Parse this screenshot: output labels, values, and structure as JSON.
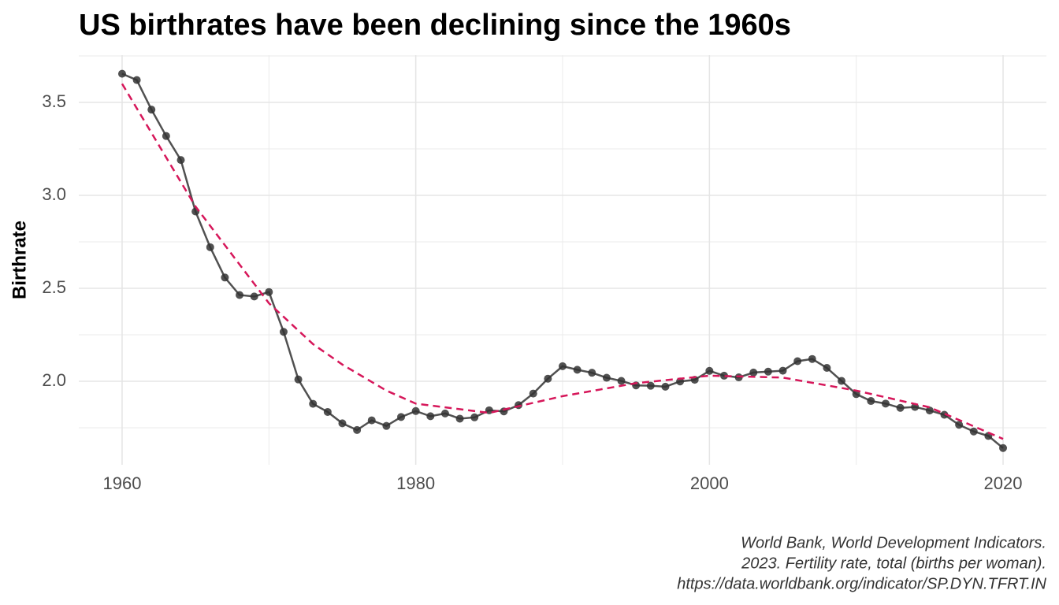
{
  "chart_data": {
    "type": "line",
    "title": "US birthrates have been declining since the 1960s",
    "y_label": "Birthrate",
    "caption": [
      "World Bank, World Development Indicators.",
      "2023. Fertility rate, total (births per woman).",
      "https://data.worldbank.org/indicator/SP.DYN.TFRT.IN"
    ],
    "x": [
      1960,
      1961,
      1962,
      1963,
      1964,
      1965,
      1966,
      1967,
      1968,
      1969,
      1970,
      1971,
      1972,
      1973,
      1974,
      1975,
      1976,
      1977,
      1978,
      1979,
      1980,
      1981,
      1982,
      1983,
      1984,
      1985,
      1986,
      1987,
      1988,
      1989,
      1990,
      1991,
      1992,
      1993,
      1994,
      1995,
      1996,
      1997,
      1998,
      1999,
      2000,
      2001,
      2002,
      2003,
      2004,
      2005,
      2006,
      2007,
      2008,
      2009,
      2010,
      2011,
      2012,
      2013,
      2014,
      2015,
      2016,
      2017,
      2018,
      2019,
      2020
    ],
    "series": [
      {
        "color": "#333333",
        "markers": true,
        "dashed": false,
        "values": [
          3.654,
          3.62,
          3.461,
          3.319,
          3.19,
          2.913,
          2.721,
          2.558,
          2.464,
          2.456,
          2.48,
          2.266,
          2.01,
          1.879,
          1.835,
          1.774,
          1.738,
          1.79,
          1.76,
          1.808,
          1.84,
          1.812,
          1.827,
          1.799,
          1.806,
          1.844,
          1.838,
          1.872,
          1.934,
          2.014,
          2.081,
          2.062,
          2.046,
          2.019,
          2.002,
          1.978,
          1.976,
          1.971,
          1.999,
          2.008,
          2.056,
          2.03,
          2.021,
          2.047,
          2.052,
          2.057,
          2.108,
          2.12,
          2.072,
          2.002,
          1.931,
          1.894,
          1.88,
          1.857,
          1.862,
          1.843,
          1.82,
          1.766,
          1.73,
          1.706,
          1.641
        ]
      },
      {
        "color": "#d6175a",
        "markers": false,
        "dashed": true,
        "x": [
          1960,
          1965,
          1970,
          1973,
          1975,
          1978,
          1980,
          1985,
          1990,
          1995,
          2000,
          2005,
          2010,
          2015,
          2020
        ],
        "values": [
          3.6,
          2.94,
          2.42,
          2.2,
          2.09,
          1.95,
          1.88,
          1.83,
          1.92,
          1.99,
          2.03,
          2.02,
          1.95,
          1.86,
          1.69
        ]
      }
    ],
    "xlim": [
      1957.05,
      2022.95
    ],
    "ylim": [
      1.551,
      3.754
    ],
    "xticks": [
      1960,
      1980,
      2000,
      2020
    ],
    "yticks": [
      2.0,
      2.5,
      3.0,
      3.5
    ],
    "x_minor_grid": [
      1970,
      1990,
      2010
    ],
    "y_minor_grid": [
      1.75,
      2.25,
      2.75,
      3.25,
      3.75
    ],
    "grid": true
  }
}
